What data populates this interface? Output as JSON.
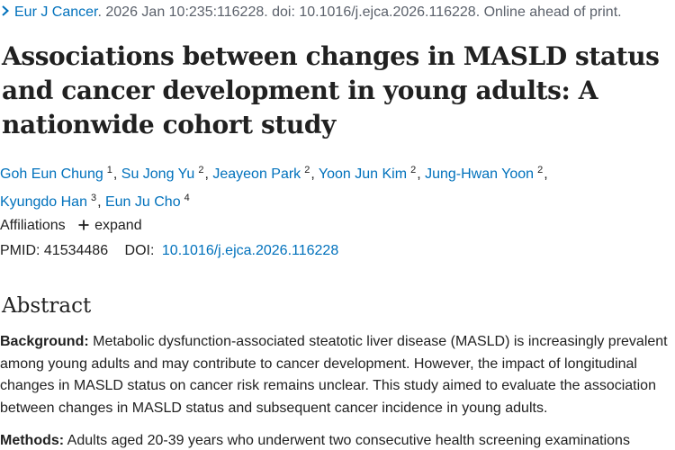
{
  "citation": {
    "journal": "Eur J Cancer",
    "details": ". 2026 Jan 10:235:116228. doi: 10.1016/j.ejca.2026.116228. Online ahead of print."
  },
  "title": "Associations between changes in MASLD status and cancer development in young adults: A nationwide cohort study",
  "authors": [
    {
      "name": "Goh Eun Chung",
      "aff": "1"
    },
    {
      "name": "Su Jong Yu",
      "aff": "2"
    },
    {
      "name": "Jeayeon Park",
      "aff": "2"
    },
    {
      "name": "Yoon Jun Kim",
      "aff": "2"
    },
    {
      "name": "Jung-Hwan Yoon",
      "aff": "2"
    },
    {
      "name": "Kyungdo Han",
      "aff": "3"
    },
    {
      "name": "Eun Ju Cho",
      "aff": "4"
    }
  ],
  "affiliations": {
    "label": "Affiliations",
    "expand_label": "expand"
  },
  "identifiers": {
    "pmid_label": "PMID:",
    "pmid": "41534486",
    "doi_label": "DOI:",
    "doi": "10.1016/j.ejca.2026.116228"
  },
  "abstract": {
    "heading": "Abstract",
    "background_label": "Background:",
    "background_text": " Metabolic dysfunction-associated steatotic liver disease (MASLD) is increasingly prevalent among young adults and may contribute to cancer development. However, the impact of longitudinal changes in MASLD status on cancer risk remains unclear. This study aimed to evaluate the association between changes in MASLD status and subsequent cancer incidence in young adults.",
    "methods_label": "Methods:",
    "methods_text": " Adults aged 20-39 years who underwent two consecutive health screening examinations"
  },
  "colors": {
    "link": "#0071bc",
    "text": "#212121",
    "muted": "#5b616b"
  },
  "icons": {
    "citation_chevron": "chevron-right-icon",
    "expand": "plus-icon"
  }
}
